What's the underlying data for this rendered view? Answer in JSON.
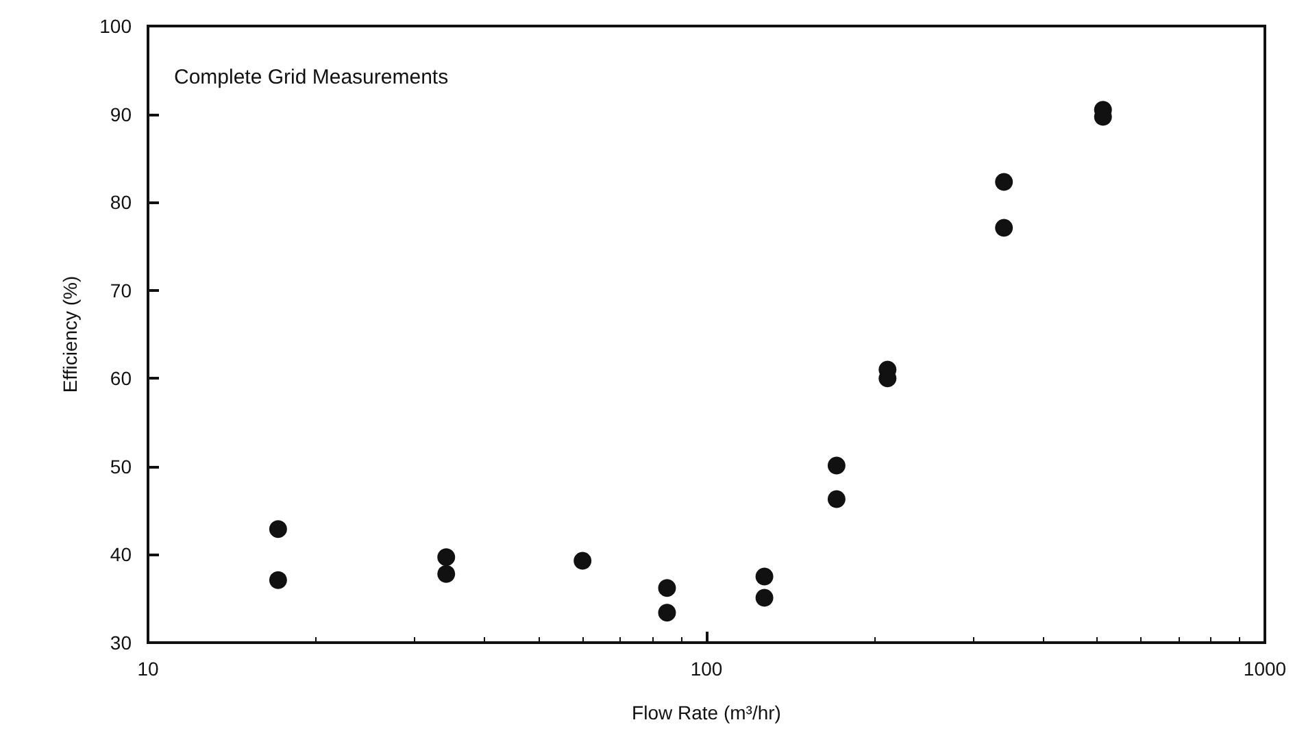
{
  "chart_data": {
    "type": "scatter",
    "title": "Complete Grid Measurements",
    "xlabel": "Flow Rate (m³/hr)",
    "ylabel": "Efficiency (%)",
    "x": [
      17.1,
      17.1,
      34.2,
      34.2,
      60,
      85,
      85,
      127,
      127,
      171,
      171,
      211,
      211,
      341,
      341,
      513,
      513
    ],
    "values": [
      42.9,
      37.1,
      39.7,
      37.8,
      39.3,
      36.2,
      33.4,
      37.5,
      35.1,
      50.1,
      46.3,
      61,
      60,
      82.3,
      77.1,
      90.5,
      89.7
    ],
    "color": "#111111",
    "marker": "circle",
    "log": "x",
    "grid": false,
    "xlim": [
      10,
      1000
    ],
    "xticks": [
      10,
      100,
      1000
    ],
    "ylim": [
      30,
      100
    ],
    "yticks": [
      30,
      40,
      50,
      60,
      70,
      80,
      90,
      100
    ]
  }
}
